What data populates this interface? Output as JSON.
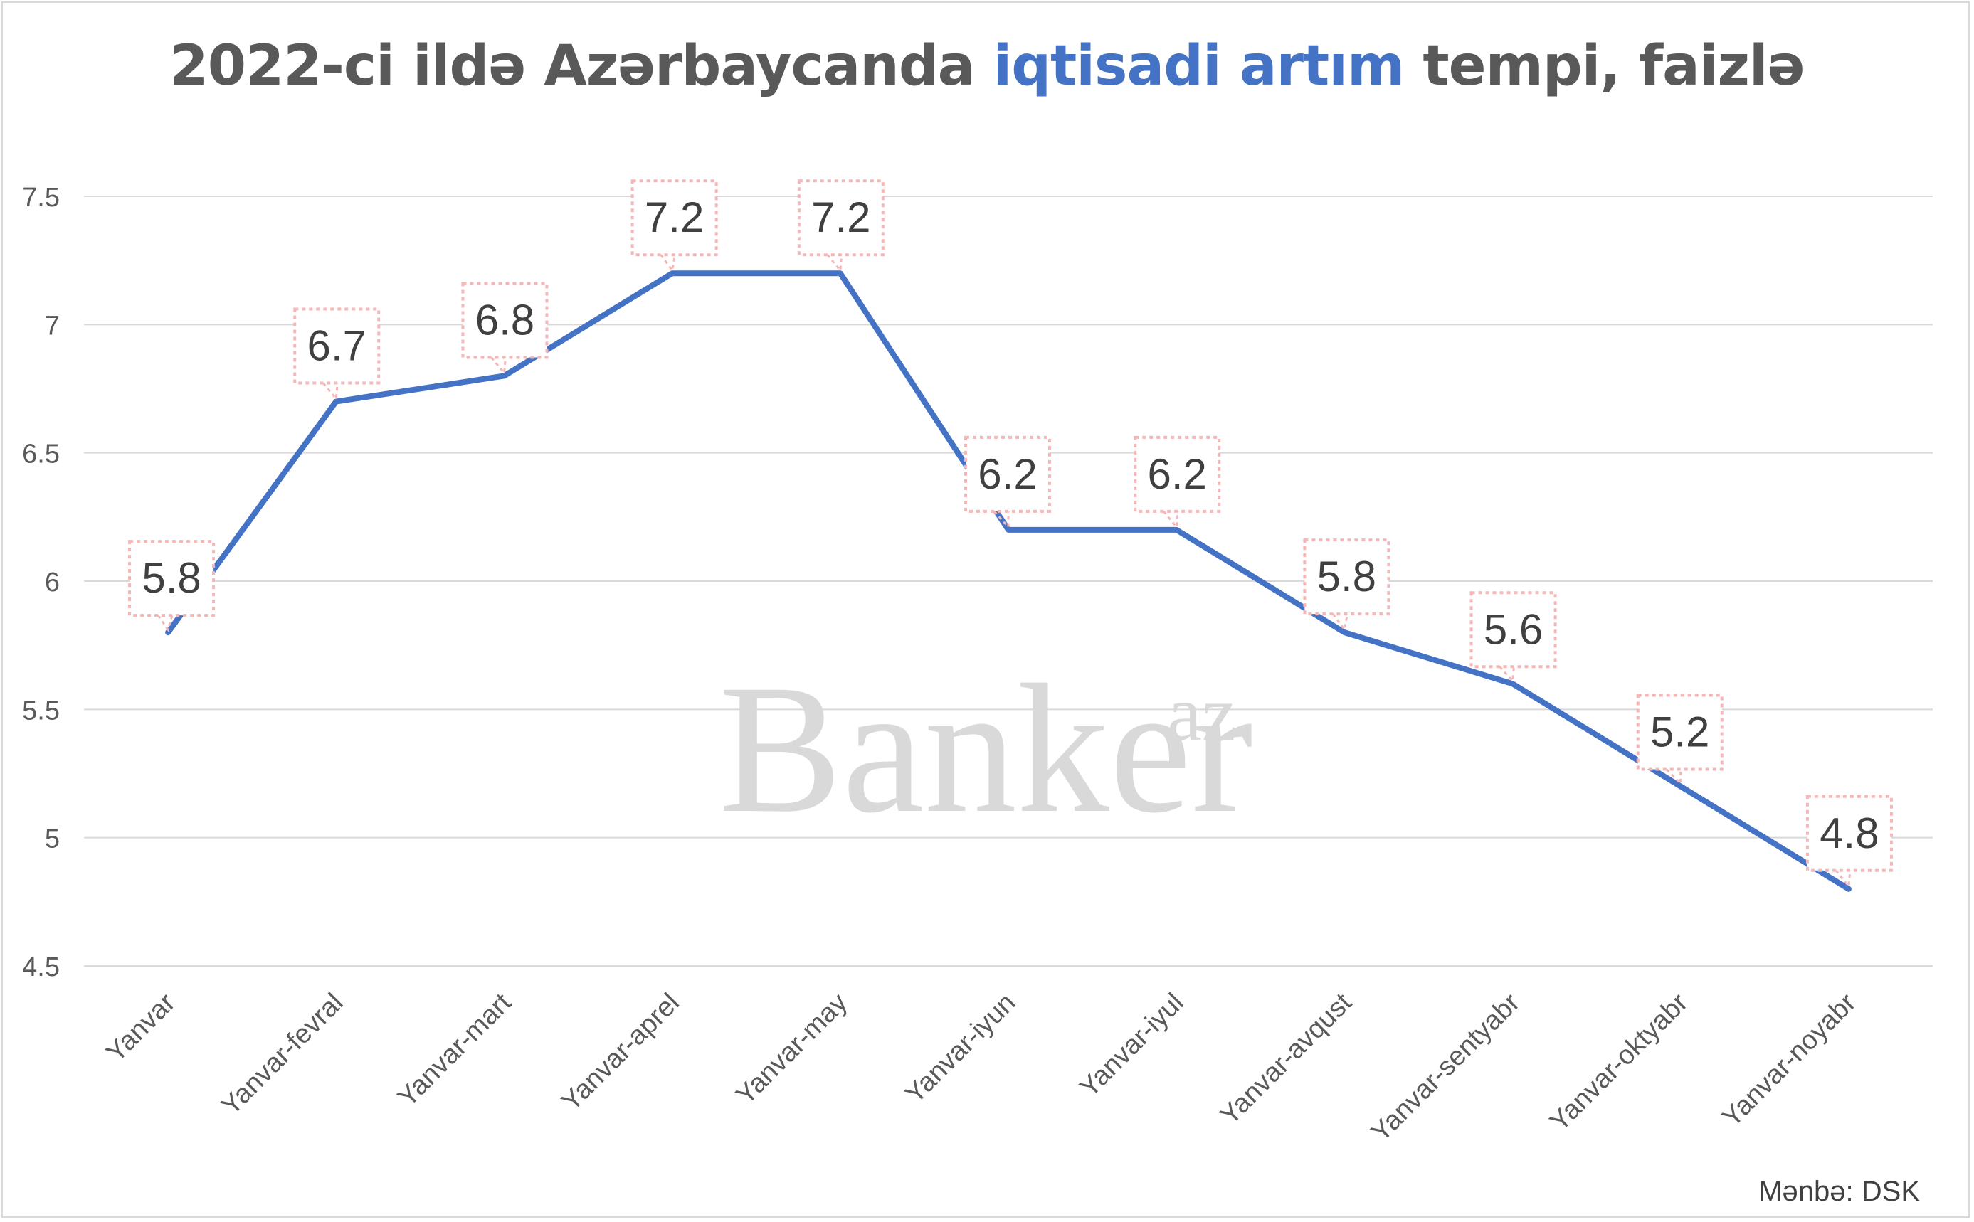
{
  "title": {
    "part1": "2022-ci ildə Azərbaycanda ",
    "highlight": "iqtisadi artım",
    "part2": " tempi, faizlə"
  },
  "watermark": {
    "text": "Banker",
    "superscript": "az"
  },
  "source": "Mənbə: DSK",
  "colors": {
    "line": "#4472c4",
    "title_accent": "#4472c4",
    "title": "#595959",
    "grid": "#d9d9d9",
    "label_border": "#f4b6b6",
    "watermark": "#d9d9d9"
  },
  "chart_data": {
    "type": "line",
    "categories": [
      "Yanvar",
      "Yanvar-fevral",
      "Yanvar-mart",
      "Yanvar-aprel",
      "Yanvar-may",
      "Yanvar-iyun",
      "Yanvar-iyul",
      "Yanvar-avqust",
      "Yanvar-sentyabr",
      "Yanvar-oktyabr",
      "Yanvar-noyabr"
    ],
    "values": [
      5.8,
      6.7,
      6.8,
      7.2,
      7.2,
      6.2,
      6.2,
      5.8,
      5.6,
      5.2,
      4.8
    ],
    "data_labels": [
      "5.8",
      "6.7",
      "6.8",
      "7.2",
      "7.2",
      "6.2",
      "6.2",
      "5.8",
      "5.6",
      "5.2",
      "4.8"
    ],
    "ylim": [
      4.5,
      7.5
    ],
    "yticks": [
      4.5,
      5,
      5.5,
      6,
      6.5,
      7,
      7.5
    ],
    "ytick_labels": [
      "4.5",
      "5",
      "5.5",
      "6",
      "6.5",
      "7",
      "7.5"
    ],
    "grid": true,
    "legend": "none"
  }
}
